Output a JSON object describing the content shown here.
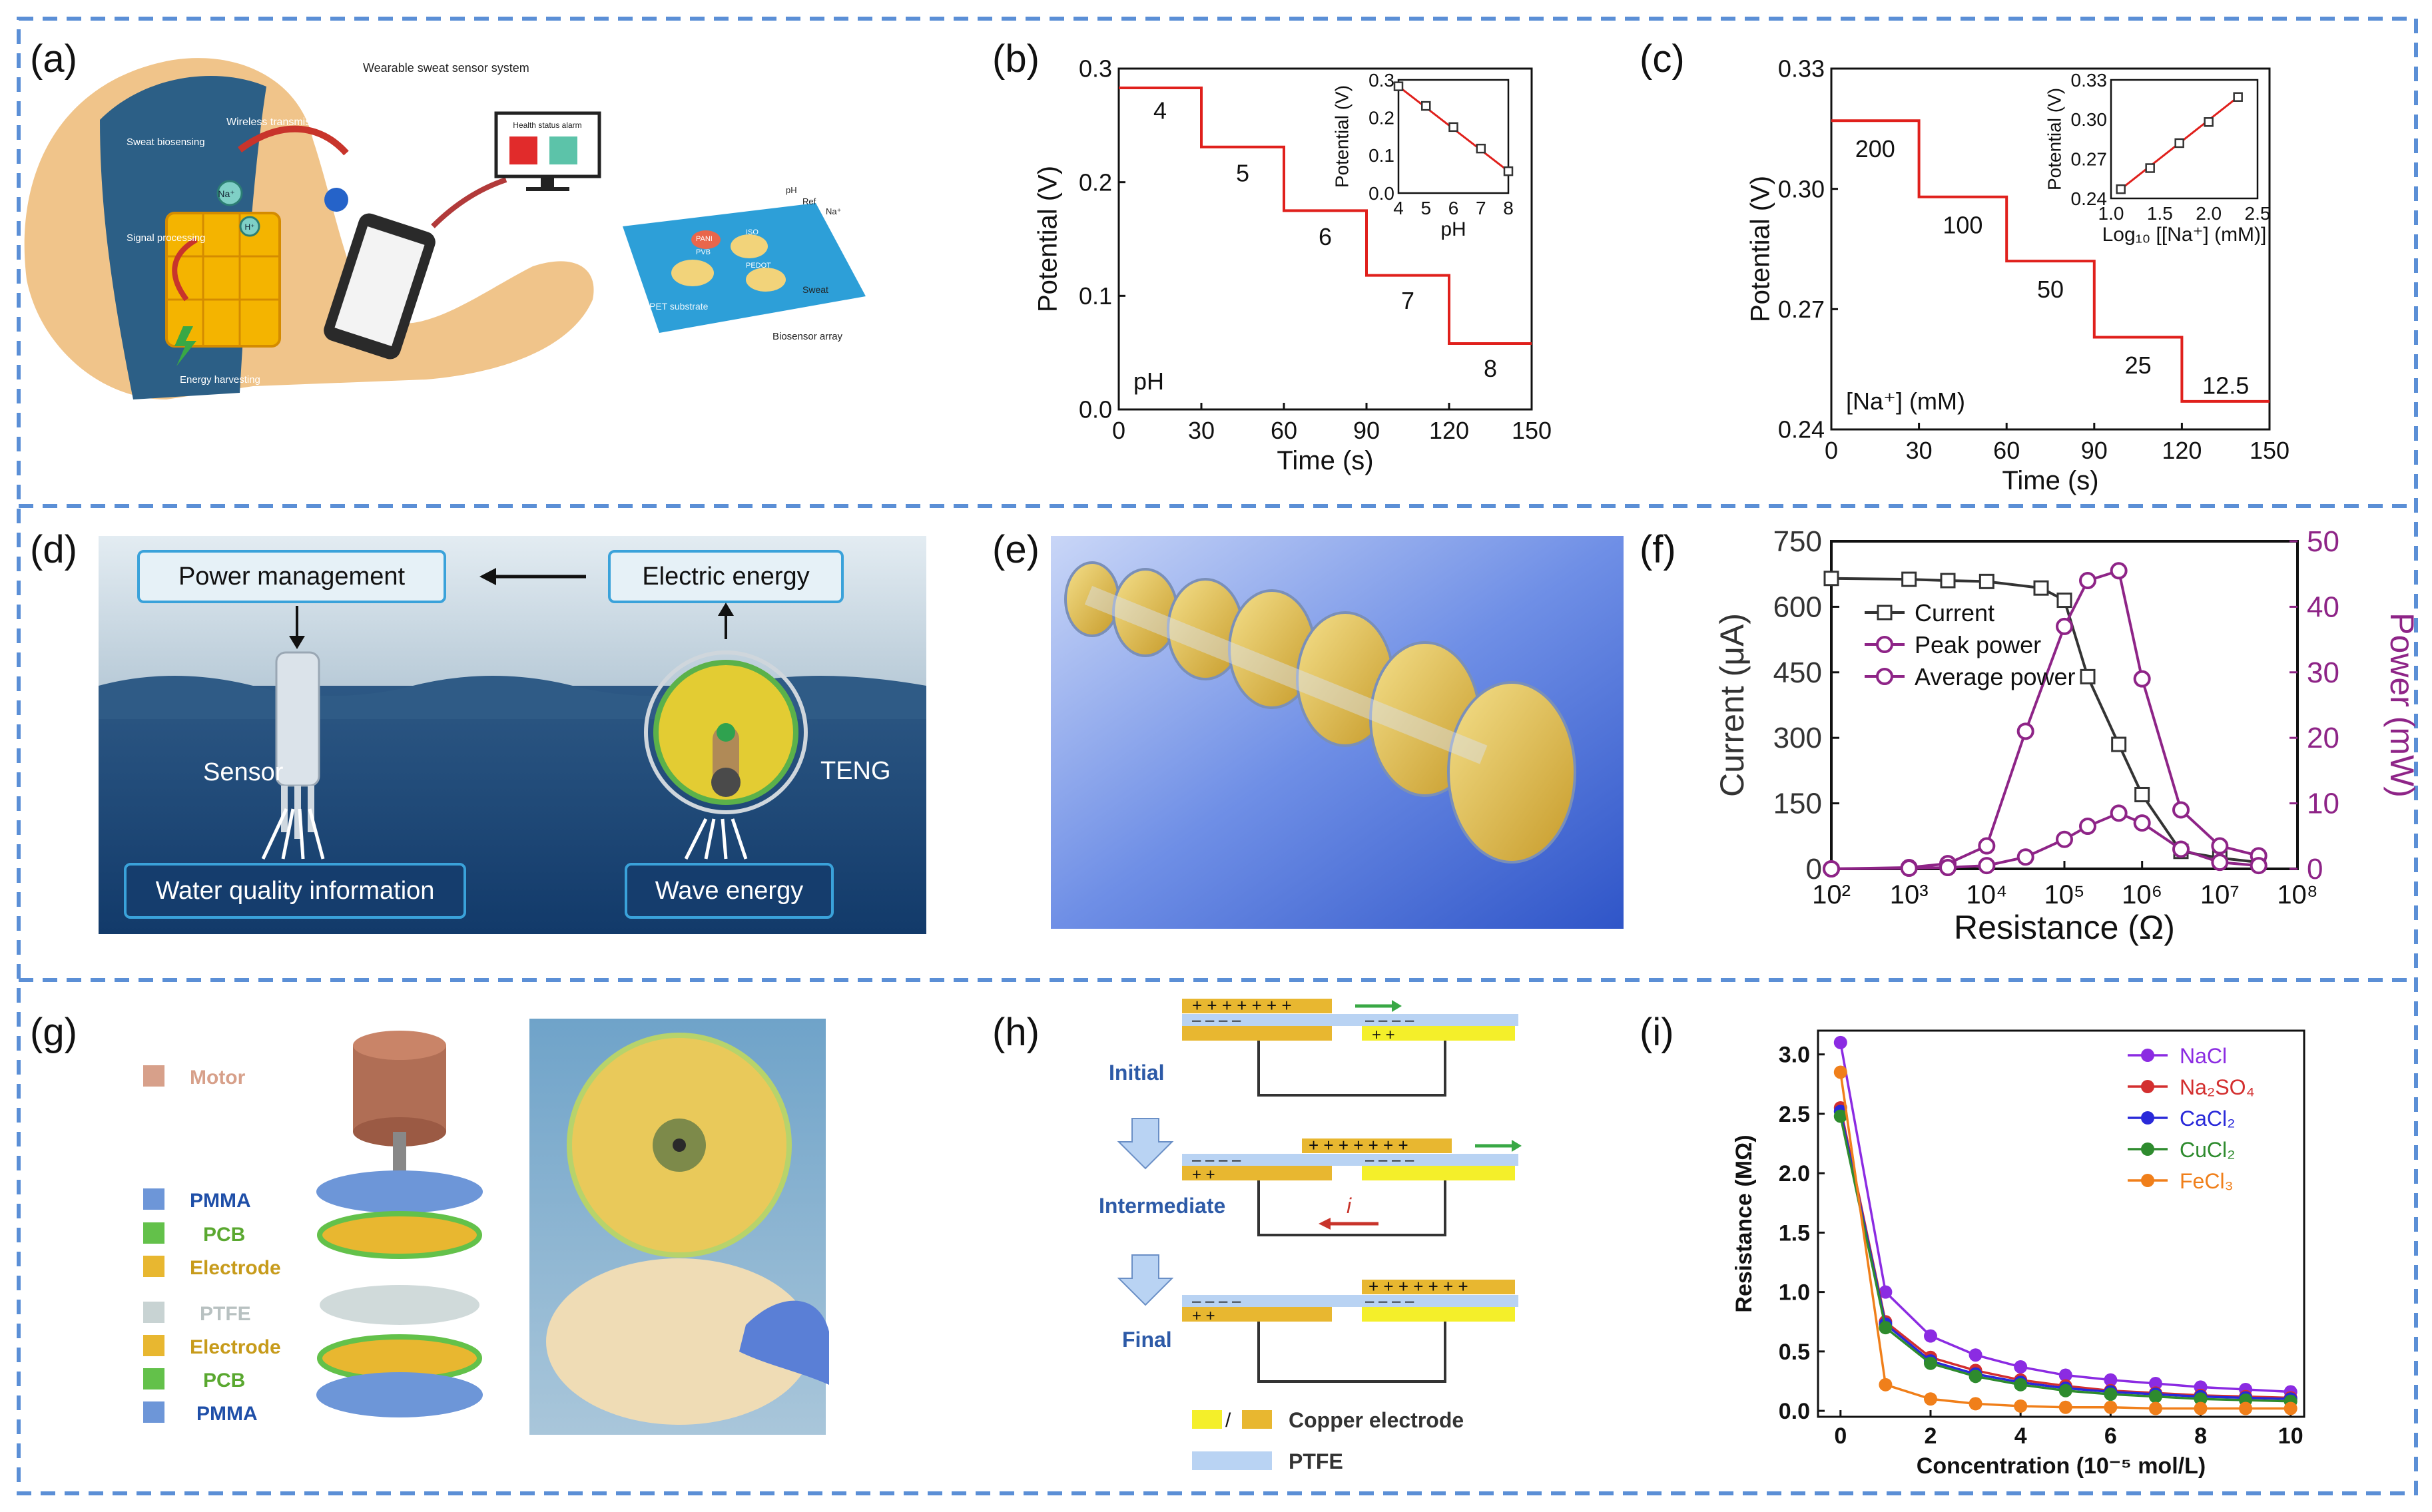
{
  "panel_labels": {
    "a": "(a)",
    "b": "(b)",
    "c": "(c)",
    "d": "(d)",
    "e": "(e)",
    "f": "(f)",
    "g": "(g)",
    "h": "(h)",
    "i": "(i)"
  },
  "panel_a": {
    "title": "Wearable sweat sensor system",
    "wireless": "Wireless transmission",
    "sweat_biosensing": "Sweat biosensing",
    "signal_processing": "Signal processing",
    "energy_harvesting": "Energy harvesting",
    "health_alarm": "Health status alarm",
    "biosensor_array": "Biosensor array",
    "pet_substrate": "PET substrate",
    "sweat": "Sweat",
    "ph": "pH",
    "ref": "Ref",
    "na": "Na⁺",
    "pvb": "PVB",
    "pani": "PANI",
    "iso": "ISO",
    "pedot": "PEDOT",
    "ion_na": "Na⁺",
    "ion_h": "H⁺"
  },
  "panel_d": {
    "power_management": "Power management",
    "electric_energy": "Electric energy",
    "sensor": "Sensor",
    "teng": "TENG",
    "water_quality": "Water quality information",
    "wave_energy": "Wave energy"
  },
  "panel_g": {
    "legend": [
      "Motor",
      "PMMA",
      "PCB",
      "Electrode",
      "PTFE",
      "Electrode",
      "PCB",
      "PMMA"
    ]
  },
  "panel_h": {
    "initial": "Initial",
    "intermediate": "Intermediate",
    "final": "Final",
    "current": "i",
    "copper_electrode": "Copper electrode",
    "ptfe": "PTFE"
  },
  "chart_data": [
    {
      "id": "b",
      "type": "line",
      "xlabel": "Time (s)",
      "ylabel": "Potential (V)",
      "xlim": [
        0,
        150
      ],
      "ylim": [
        0.0,
        0.3
      ],
      "xticks": [
        "0",
        "30",
        "60",
        "90",
        "120",
        "150"
      ],
      "yticks": [
        "0.0",
        "0.1",
        "0.2",
        "0.3"
      ],
      "annotation": "pH",
      "x": [
        0,
        30,
        30,
        60,
        60,
        90,
        90,
        120,
        120,
        150
      ],
      "y": [
        0.283,
        0.283,
        0.231,
        0.231,
        0.175,
        0.175,
        0.118,
        0.118,
        0.058,
        0.058
      ],
      "step_labels": [
        {
          "text": "4",
          "x": 15,
          "y": 0.263
        },
        {
          "text": "5",
          "x": 45,
          "y": 0.208
        },
        {
          "text": "6",
          "x": 75,
          "y": 0.152
        },
        {
          "text": "7",
          "x": 105,
          "y": 0.096
        },
        {
          "text": "8",
          "x": 135,
          "y": 0.036
        }
      ],
      "inset": {
        "xlabel": "pH",
        "ylabel": "Potential (V)",
        "xlim": [
          4,
          8
        ],
        "ylim": [
          0.0,
          0.3
        ],
        "xticks": [
          "4",
          "5",
          "6",
          "7",
          "8"
        ],
        "yticks": [
          "0.0",
          "0.1",
          "0.2",
          "0.3"
        ],
        "x": [
          4,
          5,
          6,
          7,
          8
        ],
        "y": [
          0.283,
          0.231,
          0.175,
          0.118,
          0.058
        ]
      }
    },
    {
      "id": "c",
      "type": "line",
      "xlabel": "Time (s)",
      "ylabel": "Potential (V)",
      "xlim": [
        0,
        150
      ],
      "ylim": [
        0.24,
        0.33
      ],
      "xticks": [
        "0",
        "30",
        "60",
        "90",
        "120",
        "150"
      ],
      "yticks": [
        "0.24",
        "0.27",
        "0.30",
        "0.33"
      ],
      "annotation": "[Na⁺] (mM)",
      "x": [
        0,
        30,
        30,
        60,
        60,
        90,
        90,
        120,
        120,
        150
      ],
      "y": [
        0.317,
        0.317,
        0.298,
        0.298,
        0.282,
        0.282,
        0.263,
        0.263,
        0.247,
        0.247
      ],
      "step_labels": [
        {
          "text": "200",
          "x": 15,
          "y": 0.31
        },
        {
          "text": "100",
          "x": 45,
          "y": 0.291
        },
        {
          "text": "50",
          "x": 75,
          "y": 0.275
        },
        {
          "text": "25",
          "x": 105,
          "y": 0.256
        },
        {
          "text": "12.5",
          "x": 135,
          "y": 0.251
        }
      ],
      "inset": {
        "xlabel": "Log₁₀ [[Na⁺] (mM)]",
        "ylabel": "Potential (V)",
        "xlim": [
          1.0,
          2.5
        ],
        "ylim": [
          0.24,
          0.33
        ],
        "xticks": [
          "1.0",
          "1.5",
          "2.0",
          "2.5"
        ],
        "yticks": [
          "0.24",
          "0.27",
          "0.30",
          "0.33"
        ],
        "x": [
          1.1,
          1.4,
          1.7,
          2.0,
          2.3
        ],
        "y": [
          0.247,
          0.263,
          0.282,
          0.298,
          0.317
        ]
      }
    },
    {
      "id": "f",
      "type": "line",
      "xlabel": "Resistance (Ω)",
      "ylabel_left": "Current (μA)",
      "ylabel_right": "Power (mW)",
      "xscale": "log",
      "xlim_log10": [
        2,
        8
      ],
      "ylim_left": [
        0,
        750
      ],
      "ylim_right": [
        0,
        50
      ],
      "xticks": [
        "10²",
        "10³",
        "10⁴",
        "10⁵",
        "10⁶",
        "10⁷",
        "10⁸"
      ],
      "yticks_left": [
        "0",
        "150",
        "300",
        "450",
        "600",
        "750"
      ],
      "yticks_right": [
        "0",
        "10",
        "20",
        "30",
        "40",
        "50"
      ],
      "legend_position": "top-left",
      "series": [
        {
          "name": "Current",
          "axis": "left",
          "color": "#333333",
          "marker": "square",
          "x_log10": [
            2,
            3,
            3.5,
            4,
            4.7,
            5,
            5.3,
            5.7,
            6,
            6.5,
            7,
            7.5
          ],
          "values": [
            665,
            663,
            660,
            658,
            643,
            615,
            440,
            285,
            170,
            40,
            25,
            15
          ]
        },
        {
          "name": "Peak power",
          "axis": "right",
          "color": "#8e2487",
          "marker": "circle",
          "x_log10": [
            2,
            3,
            3.5,
            4,
            4.5,
            5,
            5.3,
            5.7,
            6,
            6.5,
            7,
            7.5
          ],
          "values": [
            0.0,
            0.2,
            0.8,
            3.5,
            21.0,
            37.0,
            44.0,
            45.5,
            29.0,
            9.0,
            3.5,
            2.0
          ]
        },
        {
          "name": "Average power",
          "axis": "right",
          "color": "#8e2487",
          "marker": "circle",
          "x_log10": [
            2,
            3,
            3.5,
            4,
            4.5,
            5,
            5.3,
            5.7,
            6,
            6.5,
            7,
            7.5
          ],
          "values": [
            0.0,
            0.1,
            0.2,
            0.5,
            1.8,
            4.5,
            6.5,
            8.5,
            7.0,
            3.0,
            1.0,
            0.5
          ]
        }
      ]
    },
    {
      "id": "i",
      "type": "line",
      "xlabel": "Concentration (10⁻⁵ mol/L)",
      "ylabel": "Resistance (MΩ)",
      "xlim": [
        -0.5,
        10.3
      ],
      "ylim": [
        -0.05,
        3.2
      ],
      "xticks": [
        "0",
        "2",
        "4",
        "6",
        "8",
        "10"
      ],
      "yticks": [
        "0.0",
        "0.5",
        "1.0",
        "1.5",
        "2.0",
        "2.5",
        "3.0"
      ],
      "legend_position": "top-right",
      "x": [
        0,
        1,
        2,
        3,
        4,
        5,
        6,
        7,
        8,
        9,
        10
      ],
      "series": [
        {
          "name": "NaCl",
          "color": "#8b2be2",
          "values": [
            3.1,
            1.0,
            0.63,
            0.47,
            0.37,
            0.3,
            0.26,
            0.23,
            0.2,
            0.18,
            0.16
          ]
        },
        {
          "name": "Na₂SO₄",
          "color": "#d32f2f",
          "values": [
            2.55,
            0.75,
            0.45,
            0.34,
            0.26,
            0.21,
            0.17,
            0.15,
            0.13,
            0.12,
            0.11
          ]
        },
        {
          "name": "CaCl₂",
          "color": "#2929d9",
          "values": [
            2.52,
            0.73,
            0.42,
            0.31,
            0.24,
            0.19,
            0.16,
            0.14,
            0.12,
            0.11,
            0.1
          ]
        },
        {
          "name": "CuCl₂",
          "color": "#2e8b2e",
          "values": [
            2.48,
            0.7,
            0.4,
            0.29,
            0.22,
            0.17,
            0.14,
            0.12,
            0.1,
            0.09,
            0.08
          ]
        },
        {
          "name": "FeCl₃",
          "color": "#f07f1a",
          "values": [
            2.85,
            0.22,
            0.1,
            0.06,
            0.04,
            0.03,
            0.03,
            0.02,
            0.02,
            0.02,
            0.02
          ]
        }
      ]
    }
  ]
}
